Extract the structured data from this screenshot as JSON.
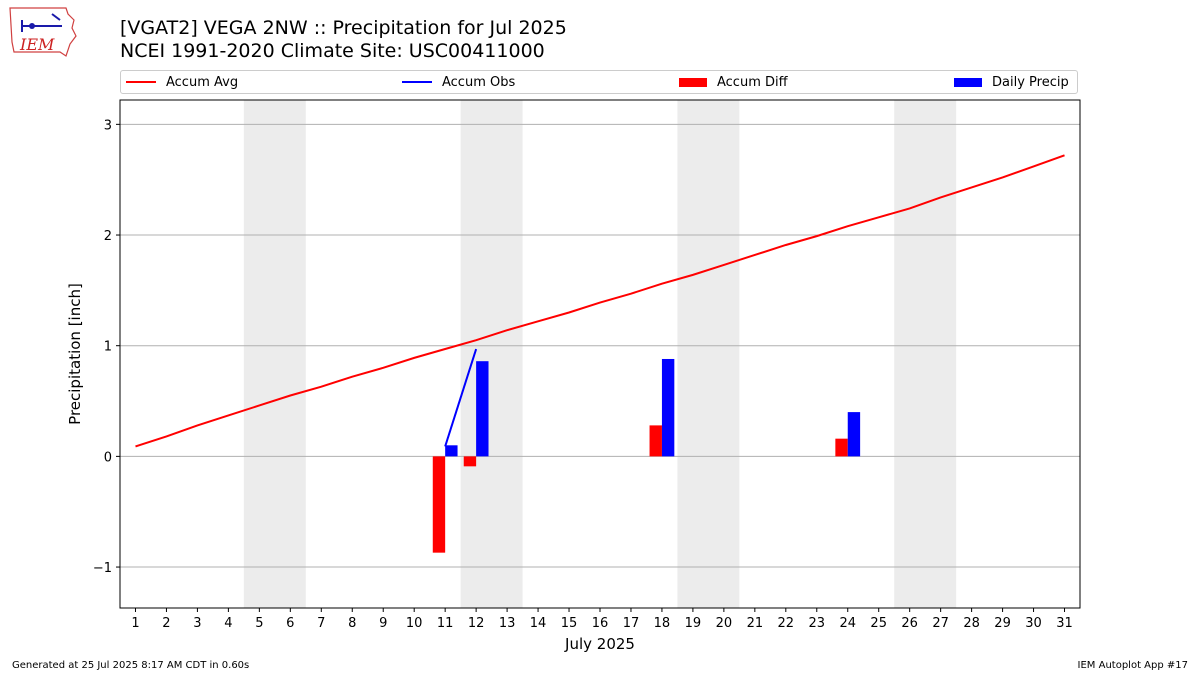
{
  "header": {
    "title_line1": "[VGAT2] VEGA 2NW :: Precipitation for Jul 2025",
    "title_line2": "NCEI 1991-2020 Climate Site: USC00411000",
    "logo_text": "IEM"
  },
  "legend": {
    "items": [
      {
        "label": "Accum Avg",
        "kind": "line",
        "color": "#ff0000"
      },
      {
        "label": "Accum Obs",
        "kind": "line",
        "color": "#0000ff"
      },
      {
        "label": "Accum Diff",
        "kind": "box",
        "color": "#ff0000"
      },
      {
        "label": "Daily Precip",
        "kind": "box",
        "color": "#0000ff"
      }
    ]
  },
  "footer": {
    "left": "Generated at 25 Jul 2025 8:17 AM CDT in 0.60s",
    "right": "IEM Autoplot App #17"
  },
  "chart_data": {
    "type": "bar",
    "xlabel": "July 2025",
    "ylabel": "Precipitation [inch]",
    "x": [
      1,
      2,
      3,
      4,
      5,
      6,
      7,
      8,
      9,
      10,
      11,
      12,
      13,
      14,
      15,
      16,
      17,
      18,
      19,
      20,
      21,
      22,
      23,
      24,
      25,
      26,
      27,
      28,
      29,
      30,
      31
    ],
    "xlim": [
      0.5,
      31.5
    ],
    "ylim": [
      -1.37,
      3.22
    ],
    "yticks": [
      -1,
      0,
      1,
      2,
      3
    ],
    "ytick_labels": [
      "−1",
      "0",
      "1",
      "2",
      "3"
    ],
    "grid": "horizontal",
    "weekend_shading": [
      [
        4.5,
        6.5
      ],
      [
        11.5,
        13.5
      ],
      [
        18.5,
        20.5
      ],
      [
        25.5,
        27.5
      ]
    ],
    "series": [
      {
        "name": "Accum Avg",
        "type": "line",
        "color": "#ff0000",
        "x": [
          1,
          2,
          3,
          4,
          5,
          6,
          7,
          8,
          9,
          10,
          11,
          12,
          13,
          14,
          15,
          16,
          17,
          18,
          19,
          20,
          21,
          22,
          23,
          24,
          25,
          26,
          27,
          28,
          29,
          30,
          31
        ],
        "values": [
          0.09,
          0.18,
          0.28,
          0.37,
          0.46,
          0.55,
          0.63,
          0.72,
          0.8,
          0.89,
          0.97,
          1.05,
          1.14,
          1.22,
          1.3,
          1.39,
          1.47,
          1.56,
          1.64,
          1.73,
          1.82,
          1.91,
          1.99,
          2.08,
          2.16,
          2.24,
          2.34,
          2.43,
          2.52,
          2.62,
          2.72
        ]
      },
      {
        "name": "Accum Obs",
        "type": "line",
        "color": "#0000ff",
        "x": [
          11,
          12
        ],
        "values": [
          0.09,
          0.97
        ]
      },
      {
        "name": "Accum Diff",
        "type": "bar",
        "color": "#ff0000",
        "x": [
          11,
          12,
          18,
          24
        ],
        "values": [
          -0.87,
          -0.09,
          0.28,
          0.16
        ]
      },
      {
        "name": "Daily Precip",
        "type": "bar",
        "color": "#0000ff",
        "x": [
          11,
          12,
          18,
          24
        ],
        "values": [
          0.1,
          0.86,
          0.88,
          0.4
        ]
      }
    ]
  }
}
